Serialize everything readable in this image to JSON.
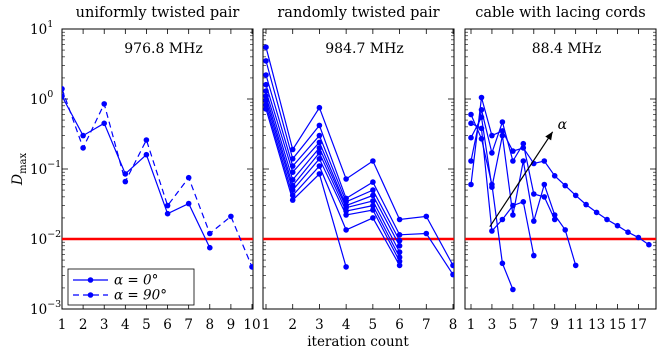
{
  "figure": {
    "ylabel_main": "D",
    "ylabel_sub": "max",
    "xlabel": "iteration count",
    "y_tick_labels": [
      {
        "base": "10",
        "exp": "1"
      },
      {
        "base": "10",
        "exp": "0"
      },
      {
        "base": "10",
        "exp": "−1"
      },
      {
        "base": "10",
        "exp": "−2"
      },
      {
        "base": "10",
        "exp": "−3"
      }
    ],
    "threshold": 0.01,
    "threshold_color": "#ff0000",
    "series_color": "#0000ff",
    "legend": {
      "entries": [
        {
          "label": "α = 0°",
          "style": "solid"
        },
        {
          "label": "α = 90°",
          "style": "dashed"
        }
      ]
    }
  },
  "chart_data": [
    {
      "type": "line",
      "title": "uniformly twisted pair",
      "annotation": "976.8 MHz",
      "x_ticks": [
        1,
        2,
        3,
        4,
        5,
        6,
        7,
        8,
        9,
        10
      ],
      "xlim": [
        1,
        10
      ],
      "ylim": [
        0.001,
        10
      ],
      "yscale": "log",
      "series": [
        {
          "name": "α = 0°",
          "style": "solid",
          "x": [
            1,
            2,
            3,
            4,
            5,
            6,
            7,
            8
          ],
          "y": [
            1.1,
            0.3,
            0.45,
            0.085,
            0.16,
            0.023,
            0.032,
            0.0075
          ]
        },
        {
          "name": "α = 90°",
          "style": "dashed",
          "x": [
            1,
            2,
            3,
            4,
            5,
            6,
            7,
            8,
            9,
            10
          ],
          "y": [
            1.4,
            0.2,
            0.85,
            0.066,
            0.26,
            0.03,
            0.075,
            0.012,
            0.021,
            0.004
          ]
        }
      ]
    },
    {
      "type": "line",
      "title": "randomly twisted pair",
      "annotation": "984.7 MHz",
      "x_ticks": [
        1,
        2,
        3,
        4,
        5,
        6,
        7,
        8
      ],
      "xlim": [
        1,
        8
      ],
      "ylim": [
        0.001,
        10
      ],
      "yscale": "log",
      "series": [
        {
          "style": "solid",
          "x": [
            1,
            2,
            3,
            4,
            5,
            6,
            7,
            8
          ],
          "y": [
            5.5,
            0.19,
            0.75,
            0.072,
            0.13,
            0.019,
            0.021,
            0.0042
          ]
        },
        {
          "style": "solid",
          "x": [
            1,
            2,
            3,
            4,
            5,
            6,
            7,
            8
          ],
          "y": [
            3.5,
            0.14,
            0.42,
            0.038,
            0.065,
            0.0115,
            0.012,
            0.0031
          ]
        },
        {
          "style": "solid",
          "x": [
            1,
            2,
            3,
            4,
            5,
            6
          ],
          "y": [
            2.2,
            0.11,
            0.3,
            0.034,
            0.05,
            0.0095
          ]
        },
        {
          "style": "solid",
          "x": [
            1,
            2,
            3,
            4,
            5,
            6
          ],
          "y": [
            1.6,
            0.09,
            0.24,
            0.03,
            0.042,
            0.008
          ]
        },
        {
          "style": "solid",
          "x": [
            1,
            2,
            3,
            4,
            5,
            6
          ],
          "y": [
            1.3,
            0.07,
            0.2,
            0.028,
            0.035,
            0.0065
          ]
        },
        {
          "style": "solid",
          "x": [
            1,
            2,
            3,
            4,
            5,
            6
          ],
          "y": [
            1.1,
            0.058,
            0.17,
            0.025,
            0.03,
            0.0055
          ]
        },
        {
          "style": "solid",
          "x": [
            1,
            2,
            3,
            4,
            5,
            6
          ],
          "y": [
            0.95,
            0.05,
            0.14,
            0.022,
            0.026,
            0.0048
          ]
        },
        {
          "style": "solid",
          "x": [
            1,
            2,
            3,
            4,
            5,
            6
          ],
          "y": [
            0.82,
            0.042,
            0.11,
            0.0135,
            0.02,
            0.0042
          ]
        },
        {
          "style": "solid",
          "x": [
            1,
            2,
            3,
            4
          ],
          "y": [
            0.72,
            0.036,
            0.085,
            0.004
          ]
        }
      ]
    },
    {
      "type": "line",
      "title": "cable with lacing cords",
      "annotation": "88.4 MHz",
      "arrow_label": "α",
      "x_ticks": [
        1,
        3,
        5,
        7,
        9,
        11,
        13,
        15,
        17
      ],
      "xlim": [
        1,
        18.2
      ],
      "ylim": [
        0.001,
        10
      ],
      "yscale": "log",
      "series": [
        {
          "style": "solid",
          "x": [
            1,
            2,
            3,
            4,
            5,
            6,
            7,
            8,
            9,
            10,
            11,
            12,
            13,
            14,
            15,
            16,
            17,
            18
          ],
          "y": [
            0.06,
            1.05,
            0.3,
            0.35,
            0.18,
            0.2,
            0.12,
            0.13,
            0.08,
            0.058,
            0.042,
            0.031,
            0.024,
            0.019,
            0.0155,
            0.0125,
            0.0105,
            0.0083
          ]
        },
        {
          "style": "solid",
          "x": [
            1,
            2,
            3,
            4,
            5,
            6,
            7,
            8,
            9
          ],
          "y": [
            0.13,
            0.7,
            0.17,
            0.47,
            0.13,
            0.23,
            0.044,
            0.04,
            0.019
          ]
        },
        {
          "style": "solid",
          "x": [
            1,
            2,
            3,
            4,
            5,
            6,
            7,
            8,
            9,
            10,
            11
          ],
          "y": [
            0.28,
            0.55,
            0.055,
            0.3,
            0.022,
            0.13,
            0.018,
            0.06,
            0.022,
            0.0135,
            0.0042
          ]
        },
        {
          "style": "solid",
          "x": [
            1,
            2,
            3,
            4,
            5,
            6,
            7
          ],
          "y": [
            0.45,
            0.38,
            0.013,
            0.019,
            0.03,
            0.034,
            0.0058
          ]
        },
        {
          "style": "solid",
          "x": [
            1,
            2,
            3,
            4,
            5
          ],
          "y": [
            0.6,
            0.27,
            0.06,
            0.0045,
            0.0019
          ]
        }
      ]
    }
  ]
}
